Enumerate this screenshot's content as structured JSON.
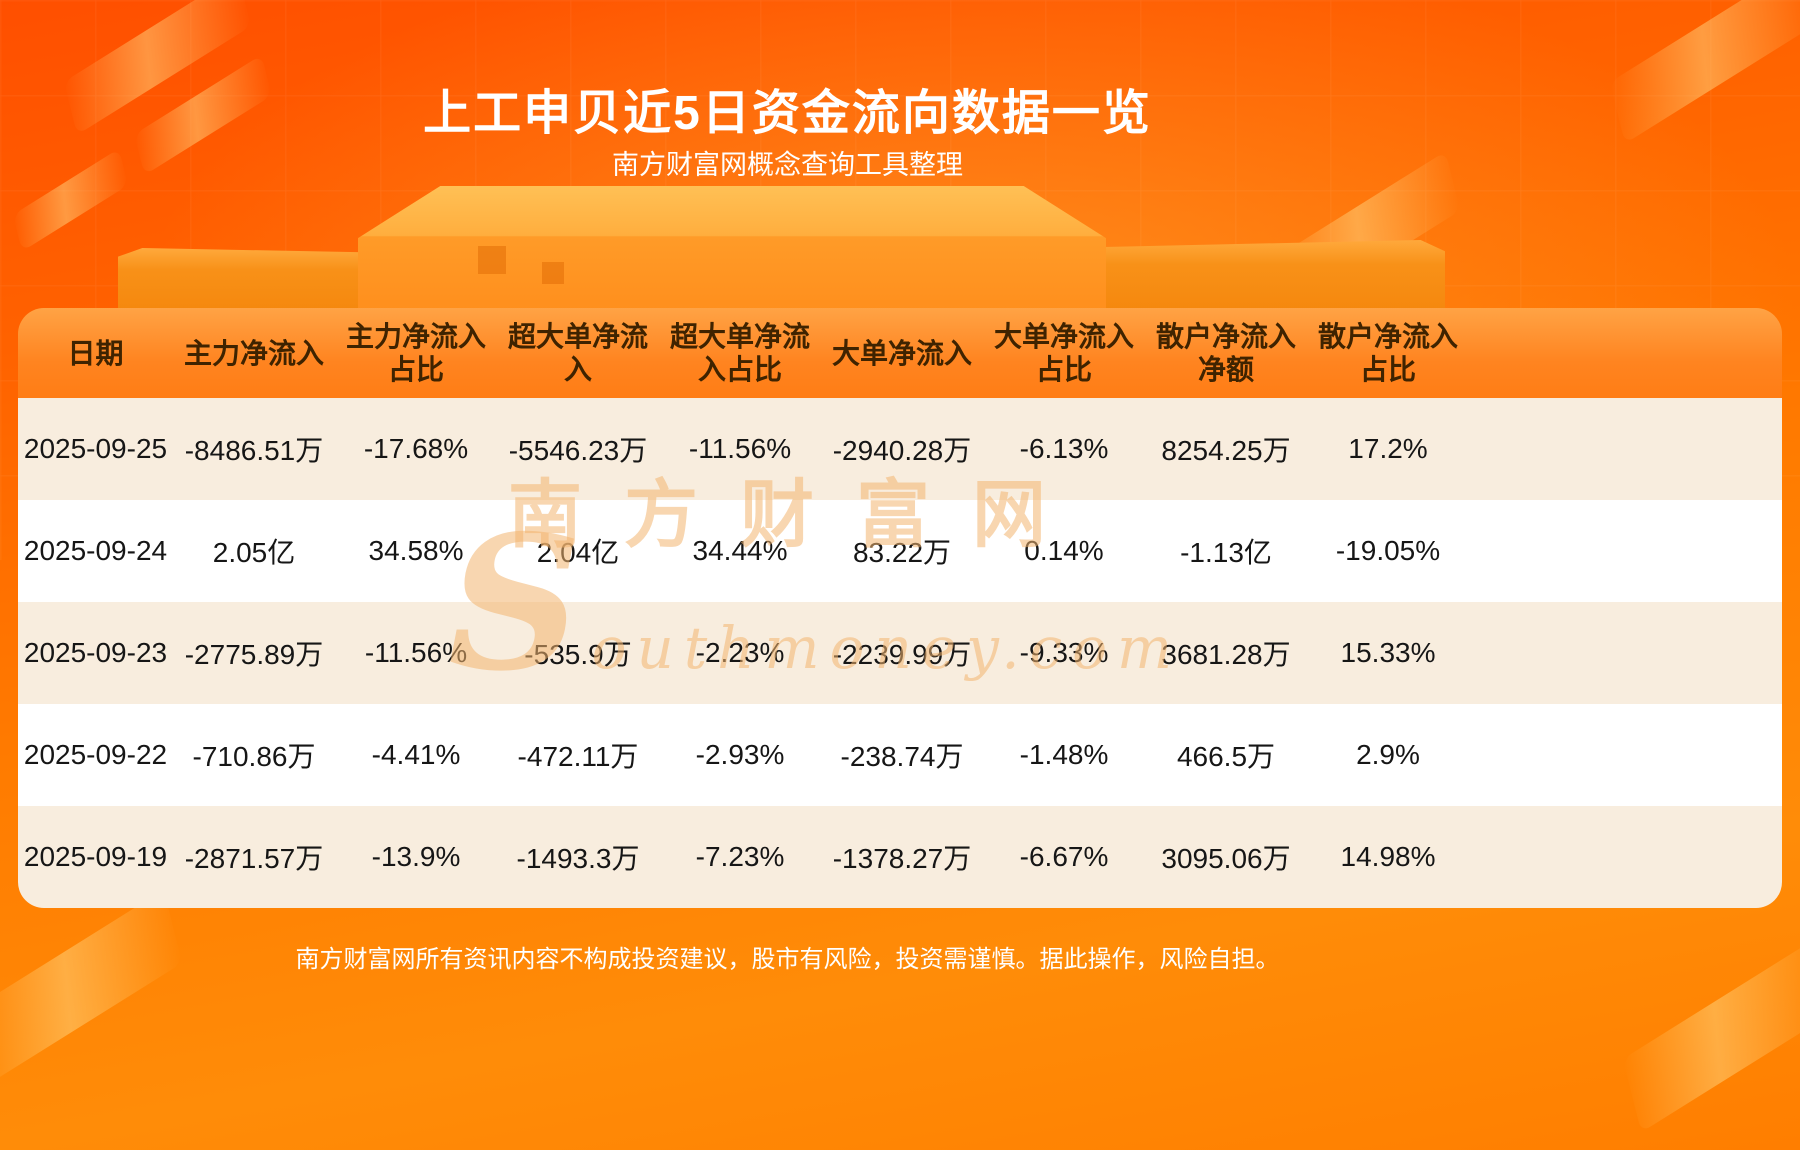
{
  "page": {
    "title": "上工申贝近5日资金流向数据一览",
    "subtitle": "南方财富网概念查询工具整理",
    "disclaimer": "南方财富网所有资讯内容不构成投资建议，股市有风险，投资需谨慎。据此操作，风险自担。"
  },
  "watermark": {
    "cn": "南方财富网",
    "en": "Southmoney.com"
  },
  "display": {
    "column_lines": [
      "日期",
      "主力净流入",
      "主力净流入\n占比",
      "超大单净流\n入",
      "超大单净流\n入占比",
      "大单净流入",
      "大单净流入\n占比",
      "散户净流入\n净额",
      "散户净流入\n占比"
    ]
  },
  "chart_data": {
    "type": "table",
    "title": "上工申贝近5日资金流向数据一览",
    "columns": [
      "日期",
      "主力净流入",
      "主力净流入占比",
      "超大单净流入",
      "超大单净流入占比",
      "大单净流入",
      "大单净流入占比",
      "散户净流入净额",
      "散户净流入占比"
    ],
    "rows": [
      [
        "2025-09-25",
        "-8486.51万",
        "-17.68%",
        "-5546.23万",
        "-11.56%",
        "-2940.28万",
        "-6.13%",
        "8254.25万",
        "17.2%"
      ],
      [
        "2025-09-24",
        "2.05亿",
        "34.58%",
        "2.04亿",
        "34.44%",
        "83.22万",
        "0.14%",
        "-1.13亿",
        "-19.05%"
      ],
      [
        "2025-09-23",
        "-2775.89万",
        "-11.56%",
        "-535.9万",
        "-2.23%",
        "-2239.99万",
        "-9.33%",
        "3681.28万",
        "15.33%"
      ],
      [
        "2025-09-22",
        "-710.86万",
        "-4.41%",
        "-472.11万",
        "-2.93%",
        "-238.74万",
        "-1.48%",
        "466.5万",
        "2.9%"
      ],
      [
        "2025-09-19",
        "-2871.57万",
        "-13.9%",
        "-1493.3万",
        "-7.23%",
        "-1378.27万",
        "-6.67%",
        "3095.06万",
        "14.98%"
      ]
    ]
  },
  "colors": {
    "background_top": "#ff4f00",
    "background_mid": "#ff7b00",
    "header_band": "#ff8420",
    "header_text": "#3f2300",
    "row_stripe": "#f8edde",
    "row_white": "#ffffff",
    "cell_text": "#161616",
    "title_text": "#ffffff",
    "watermark": "#f3b570"
  }
}
